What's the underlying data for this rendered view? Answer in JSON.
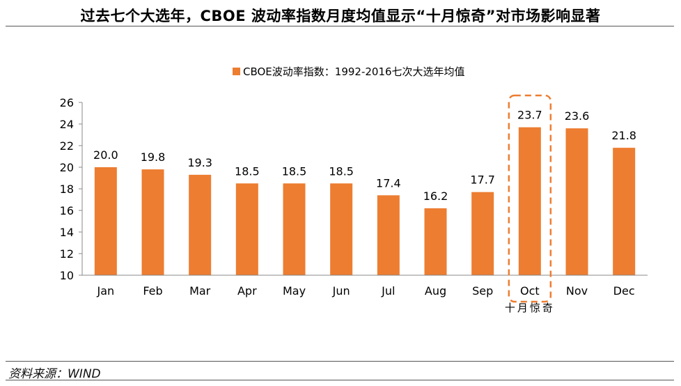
{
  "title": "过去七个大选年，CBOE 波动率指数月度均值显示“十月惊奇”对市场影响显著",
  "source": "资料来源：WIND",
  "colors": {
    "bar": "#ED7D31",
    "highlight_box": "#ED7D31",
    "axis": "#888888"
  },
  "chart_data": {
    "type": "bar",
    "categories": [
      "Jan",
      "Feb",
      "Mar",
      "Apr",
      "May",
      "Jun",
      "Jul",
      "Aug",
      "Sep",
      "Oct",
      "Nov",
      "Dec"
    ],
    "series": [
      {
        "name": "CBOE波动率指数：1992-2016七次大选年均值",
        "values": [
          20.0,
          19.8,
          19.3,
          18.5,
          18.5,
          18.5,
          17.4,
          16.2,
          17.7,
          23.7,
          23.6,
          21.8
        ]
      }
    ],
    "value_labels": [
      "20.0",
      "19.8",
      "19.3",
      "18.5",
      "18.5",
      "18.5",
      "17.4",
      "16.2",
      "17.7",
      "23.7",
      "23.6",
      "21.8"
    ],
    "ylim": [
      10,
      26
    ],
    "yticks": [
      10,
      12,
      14,
      16,
      18,
      20,
      22,
      24,
      26
    ],
    "legend_position": "top-center",
    "grid": false,
    "highlight": {
      "category": "Oct",
      "annotation": "十月惊奇"
    }
  }
}
